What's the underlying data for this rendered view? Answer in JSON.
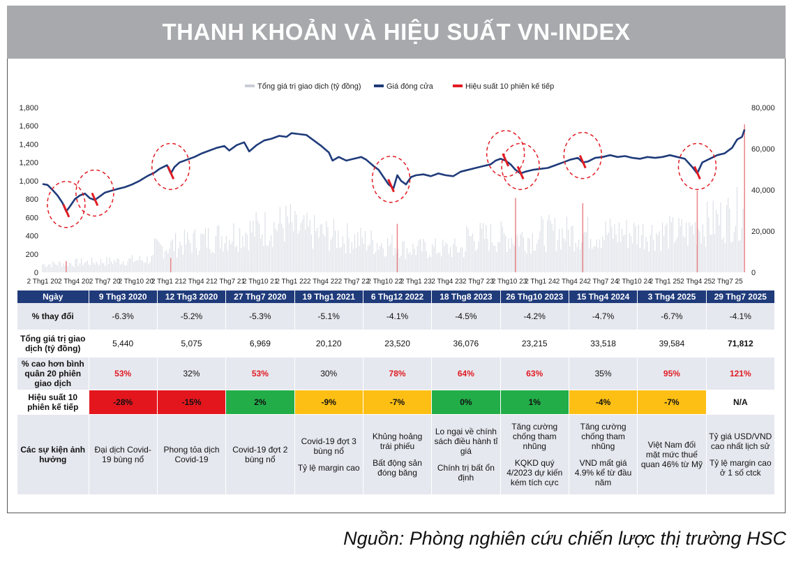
{
  "title": "THANH KHOẢN VÀ HIỆU SUẤT VN-INDEX",
  "source": "Nguồn: Phòng nghiên cứu chiến lược thị trường HSC",
  "chart_data": {
    "type": "line",
    "legend": [
      {
        "label": "Tổng giá trị giao dịch (tỷ đồng)",
        "color": "#c9cdd6"
      },
      {
        "label": "Giá đóng cửa",
        "color": "#1f3b7a"
      },
      {
        "label": "Hiệu suất 10 phiên kế tiếp",
        "color": "#e11b22"
      }
    ],
    "y_left": {
      "min": 0,
      "max": 1800,
      "ticks": [
        "1,800",
        "1,600",
        "1,400",
        "1,200",
        "1,000",
        "800",
        "600",
        "400",
        "200",
        "0"
      ]
    },
    "y_right": {
      "min": 0,
      "max": 80000,
      "ticks": [
        "80,000",
        "60,000",
        "40,000",
        "20,000",
        "0"
      ]
    },
    "x_ticks": [
      "2 Thg1 20",
      "2 Thg4 20",
      "2 Thg7 20",
      "2 Thg10 20",
      "2 Thg1 21",
      "2 Thg4 21",
      "2 Thg7 21",
      "2 Thg10 21",
      "2 Thg1 22",
      "2 Thg4 22",
      "2 Thg7 22",
      "2 Thg10 22",
      "2 Thg1 23",
      "2 Thg4 23",
      "2 Thg7 23",
      "2 Thg10 23",
      "2 Thg1 24",
      "2 Thg4 24",
      "2 Thg7 24",
      "2 Thg10 24",
      "2 Thg1 25",
      "2 Thg4 25",
      "2 Thg7 25"
    ],
    "price_series": [
      [
        0,
        965
      ],
      [
        0.04,
        955
      ],
      [
        0.08,
        900
      ],
      [
        0.12,
        840
      ],
      [
        0.16,
        760
      ],
      [
        0.19,
        665
      ],
      [
        0.22,
        720
      ],
      [
        0.26,
        800
      ],
      [
        0.3,
        840
      ],
      [
        0.34,
        860
      ],
      [
        0.38,
        810
      ],
      [
        0.42,
        790
      ],
      [
        0.46,
        830
      ],
      [
        0.5,
        870
      ],
      [
        0.55,
        890
      ],
      [
        0.6,
        910
      ],
      [
        0.66,
        930
      ],
      [
        0.72,
        960
      ],
      [
        0.78,
        1000
      ],
      [
        0.84,
        1050
      ],
      [
        0.9,
        1090
      ],
      [
        0.94,
        1130
      ],
      [
        1.0,
        1170
      ],
      [
        1.03,
        1080
      ],
      [
        1.06,
        1150
      ],
      [
        1.1,
        1200
      ],
      [
        1.16,
        1230
      ],
      [
        1.22,
        1260
      ],
      [
        1.28,
        1300
      ],
      [
        1.34,
        1330
      ],
      [
        1.4,
        1360
      ],
      [
        1.46,
        1380
      ],
      [
        1.5,
        1330
      ],
      [
        1.56,
        1390
      ],
      [
        1.62,
        1420
      ],
      [
        1.66,
        1320
      ],
      [
        1.72,
        1390
      ],
      [
        1.78,
        1440
      ],
      [
        1.84,
        1460
      ],
      [
        1.9,
        1490
      ],
      [
        1.96,
        1480
      ],
      [
        2.0,
        1520
      ],
      [
        2.06,
        1510
      ],
      [
        2.12,
        1500
      ],
      [
        2.18,
        1440
      ],
      [
        2.24,
        1380
      ],
      [
        2.3,
        1310
      ],
      [
        2.33,
        1220
      ],
      [
        2.38,
        1260
      ],
      [
        2.44,
        1220
      ],
      [
        2.5,
        1240
      ],
      [
        2.56,
        1260
      ],
      [
        2.6,
        1230
      ],
      [
        2.66,
        1160
      ],
      [
        2.7,
        1120
      ],
      [
        2.74,
        1040
      ],
      [
        2.78,
        960
      ],
      [
        2.8,
        940
      ],
      [
        2.82,
        920
      ],
      [
        2.85,
        1060
      ],
      [
        2.88,
        1000
      ],
      [
        2.92,
        960
      ],
      [
        2.96,
        1040
      ],
      [
        3.0,
        1060
      ],
      [
        3.06,
        1070
      ],
      [
        3.12,
        1050
      ],
      [
        3.18,
        1080
      ],
      [
        3.24,
        1060
      ],
      [
        3.3,
        1050
      ],
      [
        3.36,
        1100
      ],
      [
        3.42,
        1120
      ],
      [
        3.48,
        1140
      ],
      [
        3.54,
        1160
      ],
      [
        3.6,
        1180
      ],
      [
        3.64,
        1220
      ],
      [
        3.68,
        1240
      ],
      [
        3.72,
        1220
      ],
      [
        3.76,
        1180
      ],
      [
        3.8,
        1120
      ],
      [
        3.84,
        1080
      ],
      [
        3.88,
        1100
      ],
      [
        3.94,
        1120
      ],
      [
        4.0,
        1130
      ],
      [
        4.06,
        1140
      ],
      [
        4.12,
        1170
      ],
      [
        4.18,
        1200
      ],
      [
        4.24,
        1230
      ],
      [
        4.3,
        1250
      ],
      [
        4.34,
        1200
      ],
      [
        4.38,
        1210
      ],
      [
        4.44,
        1250
      ],
      [
        4.5,
        1260
      ],
      [
        4.56,
        1280
      ],
      [
        4.62,
        1260
      ],
      [
        4.68,
        1270
      ],
      [
        4.74,
        1250
      ],
      [
        4.8,
        1240
      ],
      [
        4.86,
        1260
      ],
      [
        4.92,
        1250
      ],
      [
        4.98,
        1260
      ],
      [
        5.04,
        1280
      ],
      [
        5.1,
        1260
      ],
      [
        5.16,
        1240
      ],
      [
        5.22,
        1150
      ],
      [
        5.26,
        1080
      ],
      [
        5.3,
        1200
      ],
      [
        5.36,
        1240
      ],
      [
        5.42,
        1280
      ],
      [
        5.48,
        1300
      ],
      [
        5.54,
        1360
      ],
      [
        5.58,
        1450
      ],
      [
        5.62,
        1480
      ],
      [
        5.64,
        1560
      ]
    ],
    "price_x_unit": "years since 2 Thg1 20",
    "events": [
      {
        "date": "9 Thg3 2020",
        "x": 0.19,
        "y": 665
      },
      {
        "date": "12 Thg3 2020",
        "x": 0.42,
        "y": 790
      },
      {
        "date": "27 Thg7 2020",
        "x": 1.03,
        "y": 1080
      },
      {
        "date": "19 Thg1 2021",
        "x": 2.8,
        "y": 940
      },
      {
        "date": "6 Thg12 2022",
        "x": 3.72,
        "y": 1220
      },
      {
        "date": "18 Thg8 2023",
        "x": 3.84,
        "y": 1080
      },
      {
        "date": "26 Thg10 2023",
        "x": 4.34,
        "y": 1200
      },
      {
        "date": "15 Thg4 2024",
        "x": 5.26,
        "y": 1080
      }
    ],
    "volume_peaks": [
      {
        "x": 0.19,
        "v": 5440
      },
      {
        "x": 1.03,
        "v": 6969
      },
      {
        "x": 2.85,
        "v": 23520
      },
      {
        "x": 3.8,
        "v": 36076
      },
      {
        "x": 4.34,
        "v": 33518
      },
      {
        "x": 5.26,
        "v": 39584
      },
      {
        "x": 5.64,
        "v": 71812
      }
    ]
  },
  "table": {
    "header_label": "Ngày",
    "dates": [
      "9 Thg3 2020",
      "12 Thg3 2020",
      "27 Thg7 2020",
      "19 Thg1 2021",
      "6 Thg12 2022",
      "18 Thg8 2023",
      "26 Thg10 2023",
      "15 Thg4 2024",
      "3 Thg4 2025",
      "29 Thg7 2025"
    ],
    "rows": {
      "change": {
        "label": "% thay đổi",
        "values": [
          "-6.3%",
          "-5.2%",
          "-5.3%",
          "-5.1%",
          "-4.1%",
          "-4.5%",
          "-4.2%",
          "-4.7%",
          "-6.7%",
          "-4.1%"
        ]
      },
      "volume": {
        "label": "Tổng giá trị giao dịch (tỷ đồng)",
        "values": [
          "5,440",
          "5,075",
          "6,969",
          "20,120",
          "23,520",
          "36,076",
          "23,215",
          "33,518",
          "39,584",
          "71,812"
        ]
      },
      "above_avg": {
        "label": "% cao hơn bình quân 20 phiên giao dịch",
        "values": [
          "53%",
          "32%",
          "53%",
          "30%",
          "78%",
          "64%",
          "63%",
          "35%",
          "95%",
          "121%"
        ]
      },
      "perf10": {
        "label": "Hiệu suất 10 phiên kế tiếp",
        "values": [
          "-28%",
          "-15%",
          "2%",
          "-9%",
          "-7%",
          "0%",
          "1%",
          "-4%",
          "-7%",
          "N/A"
        ],
        "colors": [
          "red",
          "red",
          "green",
          "yellow",
          "yellow",
          "green",
          "green",
          "yellow",
          "yellow",
          "white"
        ]
      },
      "events": {
        "label": "Các sự kiện ảnh hưởng",
        "values": [
          [
            "Đại dịch Covid-19 bùng nổ"
          ],
          [
            "Phong tỏa dịch Covid-19"
          ],
          [
            "Covid-19 đợt 2 bùng nổ"
          ],
          [
            "Covid-19 đợt 3 bùng nổ",
            "Tỷ lệ margin cao"
          ],
          [
            "Khủng hoảng trái phiếu",
            "Bất động sản đóng băng"
          ],
          [
            "Lo ngại về chính sách điều hành tỉ giá",
            "Chính trị bất ổn định"
          ],
          [
            "Tăng cường chống tham nhũng",
            "KQKD quý 4/2023 dự kiến kém tích cực"
          ],
          [
            "Tăng cường chống tham nhũng",
            "VND mất giá 4.9% kể từ đầu năm"
          ],
          [
            "Việt Nam đối mặt mức thuế quan 46% từ Mỹ"
          ],
          [
            "Tỷ giá USD/VND cao nhất lịch sử",
            "Tỷ lệ margin cao ở 1 số ctck"
          ]
        ]
      }
    }
  }
}
